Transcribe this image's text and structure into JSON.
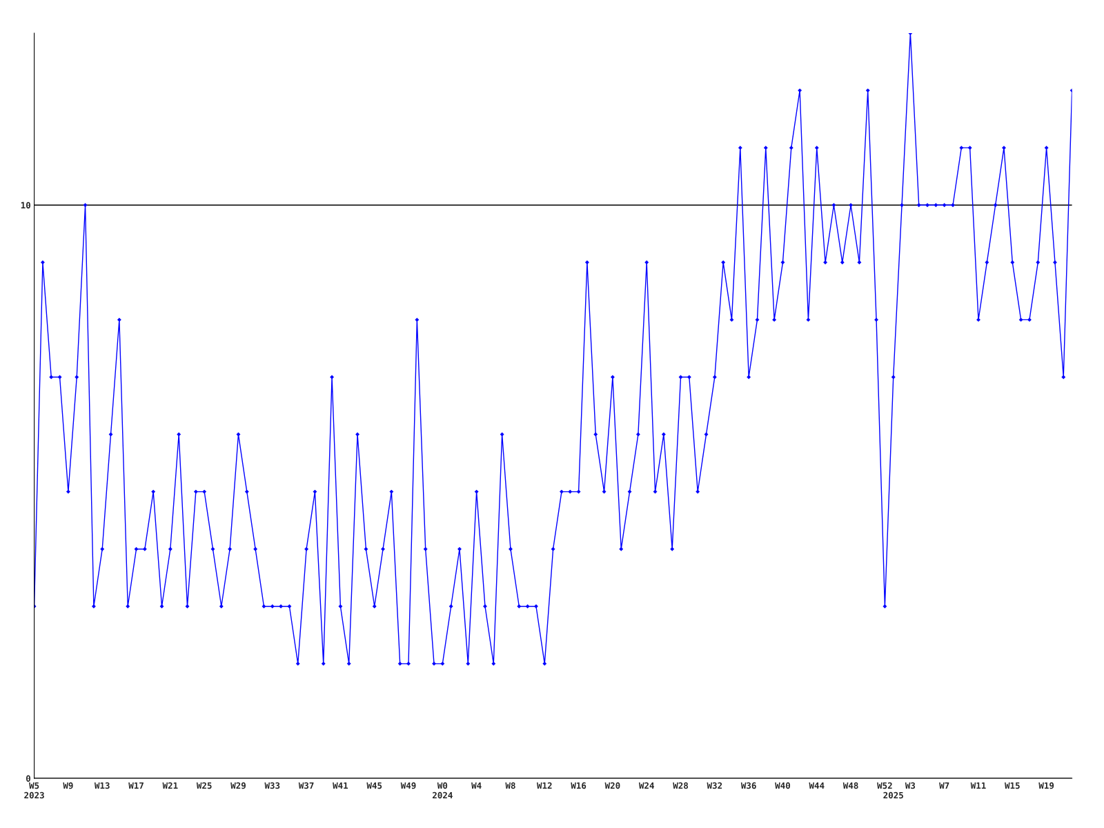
{
  "chart_data": {
    "type": "line",
    "categories": [
      "W5\n2023",
      null,
      null,
      null,
      "W9",
      null,
      null,
      null,
      "W13",
      null,
      null,
      null,
      "W17",
      null,
      null,
      null,
      "W21",
      null,
      null,
      null,
      "W25",
      null,
      null,
      null,
      "W29",
      null,
      null,
      null,
      "W33",
      null,
      null,
      null,
      "W37",
      null,
      null,
      null,
      "W41",
      null,
      null,
      null,
      "W45",
      null,
      null,
      null,
      "W49",
      null,
      null,
      null,
      "W0\n2024",
      null,
      null,
      null,
      "W4",
      null,
      null,
      null,
      "W8",
      null,
      null,
      null,
      "W12",
      null,
      null,
      null,
      "W16",
      null,
      null,
      null,
      "W20",
      null,
      null,
      null,
      "W24",
      null,
      null,
      null,
      "W28",
      null,
      null,
      null,
      "W32",
      null,
      null,
      null,
      "W36",
      null,
      null,
      null,
      "W40",
      null,
      null,
      null,
      "W44",
      null,
      null,
      null,
      "W48",
      null,
      null,
      null,
      "W52",
      "\n2025",
      null,
      "W3",
      null,
      null,
      null,
      "W7",
      null,
      null,
      null,
      "W11",
      null,
      null,
      null,
      "W15",
      null,
      null,
      null,
      "W19",
      null,
      null,
      null
    ],
    "series": [
      {
        "color": "#0000ff",
        "values": [
          3,
          9,
          7,
          7,
          5,
          7,
          10,
          3,
          4,
          6,
          8,
          3,
          4,
          4,
          5,
          3,
          4,
          6,
          3,
          5,
          5,
          4,
          3,
          4,
          6,
          5,
          4,
          3,
          3,
          3,
          3,
          2,
          4,
          5,
          2,
          7,
          3,
          2,
          6,
          4,
          3,
          4,
          5,
          2,
          2,
          8,
          4,
          2,
          2,
          3,
          4,
          2,
          5,
          3,
          2,
          6,
          4,
          3,
          3,
          3,
          2,
          4,
          5,
          5,
          5,
          9,
          6,
          5,
          7,
          4,
          5,
          6,
          9,
          5,
          6,
          4,
          7,
          7,
          5,
          6,
          7,
          9,
          8,
          11,
          7,
          8,
          11,
          8,
          9,
          11,
          12,
          8,
          11,
          9,
          10,
          9,
          10,
          9,
          12,
          8,
          3,
          7,
          10,
          13,
          10,
          10,
          10,
          10,
          10,
          11,
          11,
          8,
          9,
          10,
          11,
          9,
          8,
          8,
          9,
          11,
          9,
          7,
          12
        ]
      }
    ],
    "ylim": [
      0,
      13
    ],
    "yticks": [
      0,
      10
    ],
    "grid": "y",
    "marker": "diamond",
    "line_style": "solid"
  }
}
